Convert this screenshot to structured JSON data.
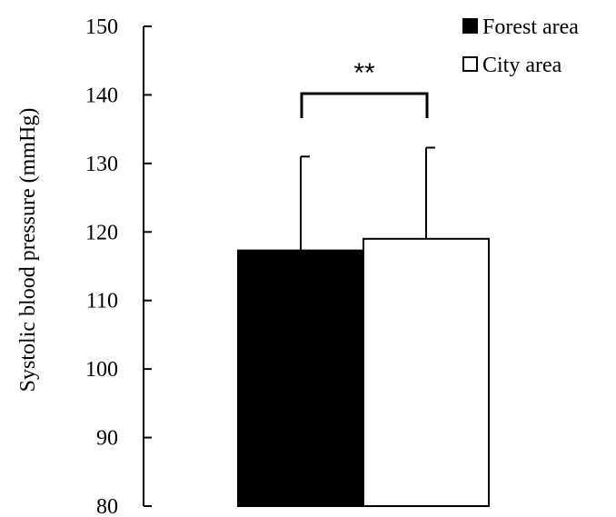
{
  "chart_data": {
    "type": "bar",
    "ylabel": "Systolic blood pressure (mmHg)",
    "xlabel": "",
    "ylim": [
      80,
      150
    ],
    "yticks": [
      80,
      90,
      100,
      110,
      120,
      130,
      140,
      150
    ],
    "grid": false,
    "legend_position": "top-right",
    "series": [
      {
        "name": "Forest area",
        "value": 117.3,
        "error": 13.7,
        "color": "#000000"
      },
      {
        "name": "City area",
        "value": 119.0,
        "error": 13.3,
        "color": "#ffffff"
      }
    ],
    "significance": {
      "label": "**"
    }
  }
}
